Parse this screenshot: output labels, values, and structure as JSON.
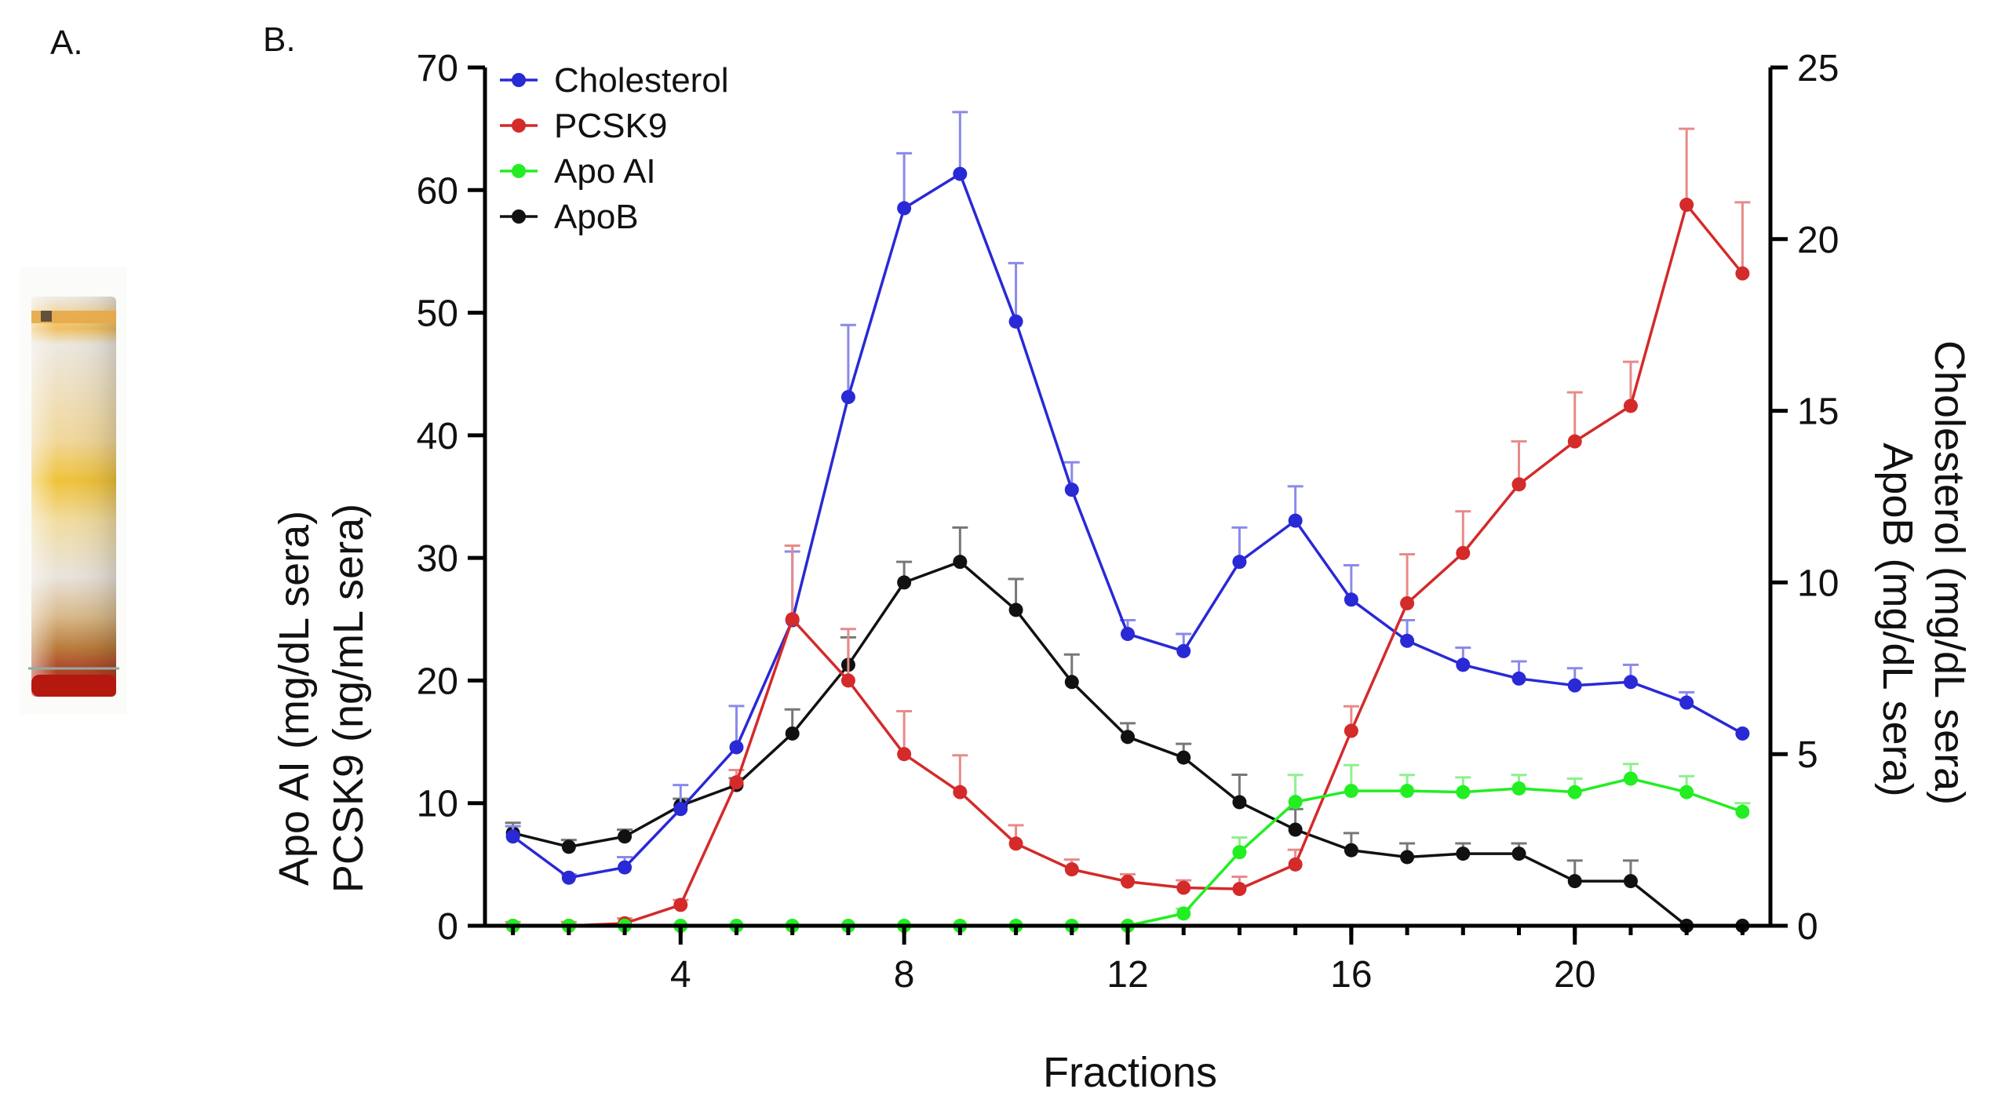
{
  "panels": {
    "a": "A.",
    "b": "B."
  },
  "colors": {
    "cholesterol": "#2929d6",
    "pcsk9": "#d42a2a",
    "apo_ai": "#22ee22",
    "apob": "#111111",
    "cholesterol_err": "#8a8aea",
    "pcsk9_err": "#e88a8a",
    "apo_ai_err": "#8ef08e",
    "apob_err": "#777777"
  },
  "chart_data": {
    "type": "line",
    "xlabel": "Fractions",
    "ylabel_left": [
      "Apo AI (mg/dL sera)",
      "PCSK9 (ng/mL sera)"
    ],
    "ylabel_right": [
      "Cholesterol (mg/dL sera)",
      "ApoB (mg/dL sera)"
    ],
    "xlim": [
      0.5,
      23.5
    ],
    "ylim_left": [
      0,
      70
    ],
    "ylim_right": [
      0,
      25
    ],
    "x_ticks": [
      4,
      8,
      12,
      16,
      20
    ],
    "y_ticks_left": [
      0,
      10,
      20,
      30,
      40,
      50,
      60,
      70
    ],
    "y_ticks_right": [
      0,
      5,
      10,
      15,
      20,
      25
    ],
    "x": [
      1,
      2,
      3,
      4,
      5,
      6,
      7,
      8,
      9,
      10,
      11,
      12,
      13,
      14,
      15,
      16,
      17,
      18,
      19,
      20,
      21,
      22,
      23
    ],
    "legend": [
      "Cholesterol",
      "PCSK9",
      "Apo AI",
      "ApoB"
    ],
    "series": [
      {
        "name": "Cholesterol",
        "key": "cholesterol",
        "axis": "right",
        "values": [
          2.6,
          1.4,
          1.7,
          3.4,
          5.2,
          8.9,
          15.4,
          20.9,
          21.9,
          17.6,
          12.7,
          8.5,
          8.0,
          10.6,
          11.8,
          9.5,
          8.3,
          7.6,
          7.2,
          7.0,
          7.1,
          6.5,
          5.6
        ],
        "errors": [
          0.3,
          0.1,
          0.3,
          0.7,
          1.2,
          2.0,
          2.1,
          1.6,
          1.8,
          1.7,
          0.8,
          0.4,
          0.5,
          1.0,
          1.0,
          1.0,
          0.6,
          0.5,
          0.5,
          0.5,
          0.5,
          0.3,
          0.0
        ]
      },
      {
        "name": "PCSK9",
        "key": "pcsk9",
        "axis": "left",
        "values": [
          0,
          0,
          0.2,
          1.7,
          11.7,
          25.0,
          20.0,
          14.0,
          10.9,
          6.7,
          4.6,
          3.6,
          3.1,
          3.0,
          5.0,
          15.9,
          26.3,
          30.4,
          36.0,
          39.5,
          42.4,
          58.8,
          53.2
        ],
        "errors": [
          0.3,
          0.3,
          0.4,
          0.4,
          1.0,
          6.0,
          4.2,
          3.5,
          3.0,
          1.5,
          0.8,
          0.6,
          0.6,
          1.0,
          1.2,
          2.0,
          4.0,
          3.4,
          3.5,
          4.0,
          3.6,
          6.2,
          5.8
        ]
      },
      {
        "name": "Apo AI",
        "key": "apo_ai",
        "axis": "left",
        "values": [
          0,
          0,
          0,
          0,
          0,
          0,
          0,
          0,
          0,
          0,
          0,
          0,
          1.0,
          6.0,
          10.1,
          11.0,
          11.0,
          10.9,
          11.2,
          10.9,
          12.0,
          10.9,
          9.3
        ],
        "errors": [
          0,
          0,
          0,
          0,
          0,
          0,
          0,
          0,
          0,
          0,
          0,
          0,
          0.4,
          1.2,
          2.2,
          2.1,
          1.3,
          1.2,
          1.1,
          1.1,
          1.2,
          1.3,
          0.7
        ]
      },
      {
        "name": "ApoB",
        "key": "apob",
        "axis": "right",
        "values": [
          2.7,
          2.3,
          2.6,
          3.5,
          4.1,
          5.6,
          7.6,
          10.0,
          10.6,
          9.2,
          7.1,
          5.5,
          4.9,
          3.6,
          2.8,
          2.2,
          2.0,
          2.1,
          2.1,
          1.3,
          1.3,
          0.0,
          0.0
        ],
        "errors": [
          0.3,
          0.2,
          0.2,
          0.2,
          0.2,
          0.7,
          0.8,
          0.6,
          1.0,
          0.9,
          0.8,
          0.4,
          0.4,
          0.8,
          0.6,
          0.5,
          0.4,
          0.3,
          0.3,
          0.6,
          0.6,
          0.0,
          0.0
        ]
      }
    ]
  }
}
